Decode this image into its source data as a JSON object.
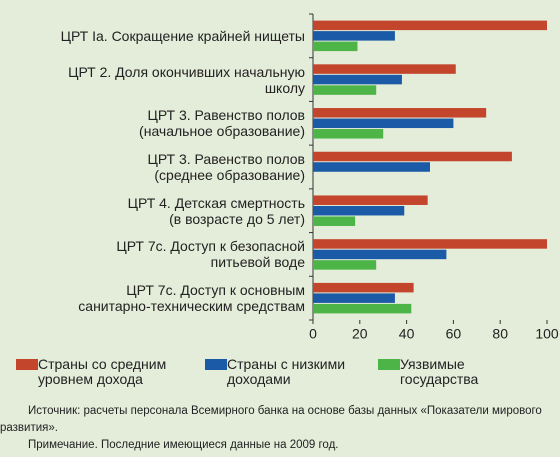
{
  "chart_data": {
    "type": "hbar",
    "categories": [
      "ЦРТ Ia. Сокращение крайней нищеты",
      "ЦРТ 2. Доля окончивших начальную\nшколу",
      "ЦРТ 3. Равенство полов\n(начальное образование)",
      "ЦРТ 3. Равенство полов\n(среднее образование)",
      "ЦРТ 4. Детская смертность\n(в возрасте до 5 лет)",
      "ЦРТ 7с. Доступ к безопасной\nпитьевой воде",
      "ЦРТ 7с. Доступ к основным\nсанитарно-техническим средствам"
    ],
    "series": [
      {
        "name": "Страны со средним\nуровнем дохода",
        "color": "#c2452c",
        "values": [
          100,
          61,
          74,
          85,
          49,
          100,
          43
        ]
      },
      {
        "name": "Страны с низкими\nдоходами",
        "color": "#1b5aa6",
        "values": [
          35,
          38,
          60,
          50,
          39,
          57,
          35
        ]
      },
      {
        "name": "Уязвимые\nгосударства",
        "color": "#4db548",
        "values": [
          19,
          27,
          30,
          null,
          18,
          27,
          42
        ]
      }
    ],
    "xlim": [
      0,
      100
    ],
    "xticks": [
      0,
      20,
      40,
      60,
      80,
      100
    ],
    "source": "Источник: расчеты персонала Всемирного банка на основе базы данных «Показатели мирового развития».",
    "note": "Примечание. Последние имеющиеся данные на 2009 год."
  }
}
